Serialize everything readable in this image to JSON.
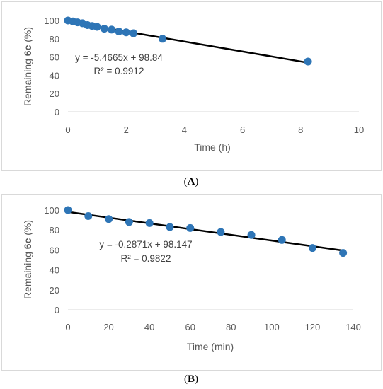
{
  "chart_data": [
    {
      "type": "scatter",
      "panel_label": "A",
      "ylabel_prefix": "Remaining ",
      "ylabel_bold": "6c",
      "ylabel_suffix": " (%)",
      "xlabel": "Time (h)",
      "xlim": [
        0,
        10
      ],
      "ylim": [
        0,
        100
      ],
      "xticks": [
        0,
        2,
        4,
        6,
        8,
        10
      ],
      "yticks": [
        0,
        20,
        40,
        60,
        80,
        100
      ],
      "grid": false,
      "marker_color": "#2e75b6",
      "trend_color": "#000000",
      "points": [
        {
          "x": 0,
          "y": 100
        },
        {
          "x": 0.17,
          "y": 99
        },
        {
          "x": 0.33,
          "y": 98
        },
        {
          "x": 0.5,
          "y": 97
        },
        {
          "x": 0.67,
          "y": 95
        },
        {
          "x": 0.83,
          "y": 94
        },
        {
          "x": 1.0,
          "y": 93
        },
        {
          "x": 1.25,
          "y": 91
        },
        {
          "x": 1.5,
          "y": 90
        },
        {
          "x": 1.75,
          "y": 88
        },
        {
          "x": 2.0,
          "y": 87
        },
        {
          "x": 2.25,
          "y": 86
        },
        {
          "x": 3.25,
          "y": 80
        },
        {
          "x": 8.25,
          "y": 55
        }
      ],
      "trendline": {
        "slope": -5.4665,
        "intercept": 98.84,
        "x_from": 0,
        "x_to": 8.25
      },
      "equation": "y = -5.4665x + 98.84",
      "r2": "R² = 0.9912"
    },
    {
      "type": "scatter",
      "panel_label": "B",
      "ylabel_prefix": "Remaining ",
      "ylabel_bold": "6c",
      "ylabel_suffix": " (%)",
      "xlabel": "Time (min)",
      "xlim": [
        0,
        140
      ],
      "ylim": [
        0,
        100
      ],
      "xticks": [
        0,
        20,
        40,
        60,
        80,
        100,
        120,
        140
      ],
      "yticks": [
        0,
        20,
        40,
        60,
        80,
        100
      ],
      "grid": false,
      "marker_color": "#2e75b6",
      "trend_color": "#000000",
      "points": [
        {
          "x": 0,
          "y": 100
        },
        {
          "x": 10,
          "y": 94
        },
        {
          "x": 20,
          "y": 91
        },
        {
          "x": 30,
          "y": 88
        },
        {
          "x": 40,
          "y": 87
        },
        {
          "x": 50,
          "y": 83
        },
        {
          "x": 60,
          "y": 82
        },
        {
          "x": 75,
          "y": 78
        },
        {
          "x": 90,
          "y": 75
        },
        {
          "x": 105,
          "y": 70
        },
        {
          "x": 120,
          "y": 62
        },
        {
          "x": 135,
          "y": 57
        }
      ],
      "trendline": {
        "slope": -0.2871,
        "intercept": 98.147,
        "x_from": 0,
        "x_to": 135
      },
      "equation": "y = -0.2871x + 98.147",
      "r2": "R² = 0.9822"
    }
  ]
}
